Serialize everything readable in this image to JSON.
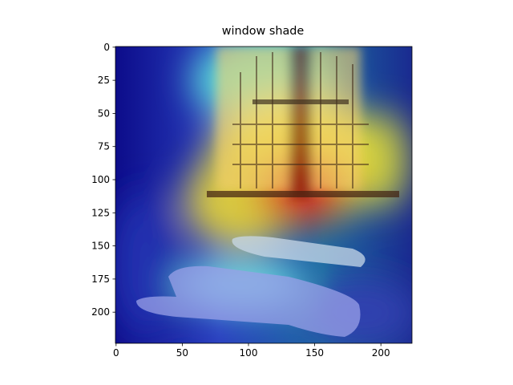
{
  "chart_data": {
    "type": "image",
    "title": "window shade",
    "xlim": [
      -0.5,
      223.5
    ],
    "ylim": [
      223.5,
      -0.5
    ],
    "xticks": [
      0,
      50,
      100,
      150,
      200
    ],
    "yticks": [
      0,
      25,
      50,
      75,
      100,
      125,
      150,
      175,
      200
    ]
  }
}
